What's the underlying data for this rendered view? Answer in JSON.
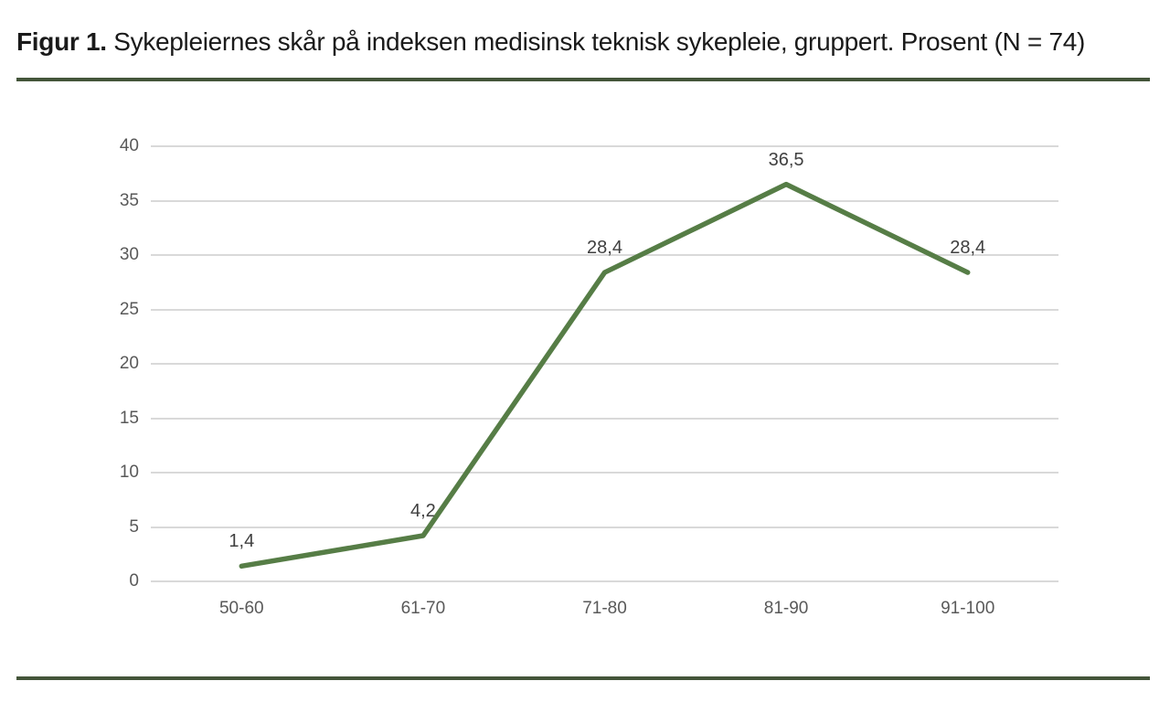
{
  "figure": {
    "title_prefix": "Figur 1.",
    "title_rest": " Sykepleiernes skår på indeksen medisinsk teknisk sykepleie, gruppert. Prosent (N = 74)"
  },
  "colors": {
    "line": "#567d46",
    "rule": "#44553a",
    "gridline": "#d9d9d9",
    "axis_label": "#595959",
    "data_label": "#404040",
    "title": "#1a1a1a"
  },
  "chart_data": {
    "type": "line",
    "title": "",
    "xlabel": "",
    "ylabel": "",
    "categories": [
      "50-60",
      "61-70",
      "71-80",
      "81-90",
      "91-100"
    ],
    "values": [
      1.4,
      4.2,
      28.4,
      36.5,
      28.4
    ],
    "data_labels": [
      "1,4",
      "4,2",
      "28,4",
      "36,5",
      "28,4"
    ],
    "yticks": [
      0,
      5,
      10,
      15,
      20,
      25,
      30,
      35,
      40
    ],
    "ylim": [
      0,
      40
    ],
    "grid": true,
    "legend": false
  }
}
